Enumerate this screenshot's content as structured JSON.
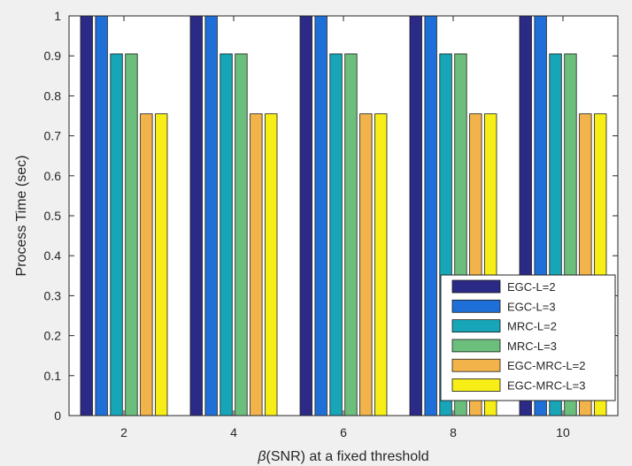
{
  "chart_data": {
    "type": "bar",
    "xlabel_symbol": "β",
    "xlabel": "(SNR) at a fixed threshold",
    "ylabel": "Process Time (sec)",
    "categories": [
      "2",
      "4",
      "6",
      "8",
      "10"
    ],
    "ylim": [
      0,
      1
    ],
    "yticks": [
      "0",
      "0.1",
      "0.2",
      "0.3",
      "0.4",
      "0.5",
      "0.6",
      "0.7",
      "0.8",
      "0.9",
      "1"
    ],
    "grid": false,
    "legend_position": "bottom-right",
    "series": [
      {
        "name": "EGC-L=2",
        "color": "#2b2a86",
        "values": [
          1,
          1,
          1,
          1,
          1
        ]
      },
      {
        "name": "EGC-L=3",
        "color": "#1f6fd8",
        "values": [
          1,
          1,
          1,
          1,
          1
        ]
      },
      {
        "name": "MRC-L=2",
        "color": "#16a6b8",
        "values": [
          0.905,
          0.905,
          0.905,
          0.905,
          0.905
        ]
      },
      {
        "name": "MRC-L=3",
        "color": "#6cbe7c",
        "values": [
          0.905,
          0.905,
          0.905,
          0.905,
          0.905
        ]
      },
      {
        "name": "EGC-MRC-L=2",
        "color": "#f2b34a",
        "values": [
          0.755,
          0.755,
          0.755,
          0.755,
          0.755
        ]
      },
      {
        "name": "EGC-MRC-L=3",
        "color": "#f6ee16",
        "values": [
          0.755,
          0.755,
          0.755,
          0.755,
          0.755
        ]
      }
    ]
  }
}
